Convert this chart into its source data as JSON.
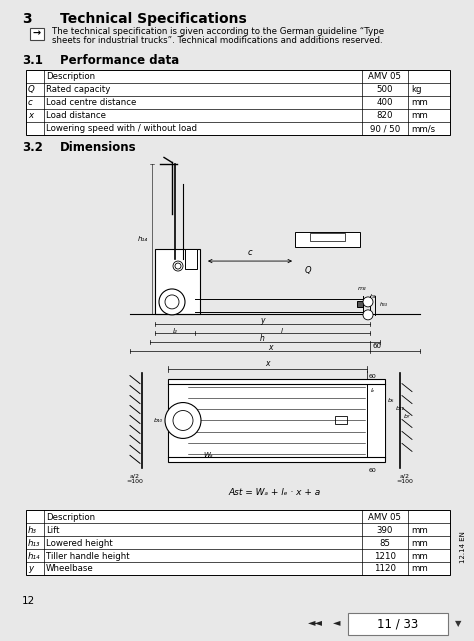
{
  "title_section": "3",
  "title_text": "Technical Specifications",
  "note_arrow": "→",
  "note_text_line1": "The technical specification is given according to the German guideline “Type",
  "note_text_line2": "sheets for industrial trucks”. Technical modifications and additions reserved.",
  "section_31": "3.1",
  "section_31_title": "Performance data",
  "table1_rows": [
    [
      "",
      "Description",
      "AMV 05",
      ""
    ],
    [
      "Q",
      "Rated capacity",
      "500",
      "kg"
    ],
    [
      "c",
      "Load centre distance",
      "400",
      "mm"
    ],
    [
      "x",
      "Load distance",
      "820",
      "mm"
    ],
    [
      "",
      "Lowering speed with / without load",
      "90 / 50",
      "mm/s"
    ]
  ],
  "section_32": "3.2",
  "section_32_title": "Dimensions",
  "formula_text": "Ast = Wₐ + lₑ · x + a",
  "table2_rows": [
    [
      "",
      "Description",
      "AMV 05",
      ""
    ],
    [
      "h₃",
      "Lift",
      "390",
      "mm"
    ],
    [
      "h₁₃",
      "Lowered height",
      "85",
      "mm"
    ],
    [
      "h₁₄",
      "Tiller handle height",
      "1210",
      "mm"
    ],
    [
      "y",
      "Wheelbase",
      "1120",
      "mm"
    ]
  ],
  "page_number": "12",
  "nav_text": "11 / 33",
  "side_text": "12.14 EN",
  "bg_color": "#e8e8e8",
  "page_bg": "#ffffff",
  "nav_bg": "#c0c0c0"
}
